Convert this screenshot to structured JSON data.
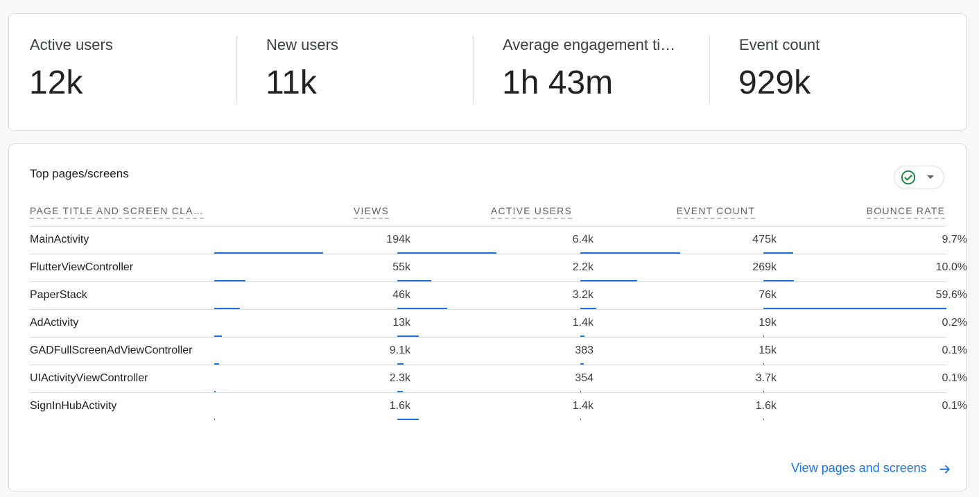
{
  "metrics": [
    {
      "label": "Active users",
      "value": "12k"
    },
    {
      "label": "New users",
      "value": "11k"
    },
    {
      "label": "Average engagement ti…",
      "value": "1h 43m"
    },
    {
      "label": "Event count",
      "value": "929k"
    }
  ],
  "table": {
    "title": "Top pages/screens",
    "status_icon": "check-circle-icon",
    "accent_color": "#1a73e8",
    "status_color": "#188038",
    "columns": {
      "name": "PAGE TITLE AND SCREEN CLA…",
      "views": "VIEWS",
      "active_users": "ACTIVE USERS",
      "event_count": "EVENT COUNT",
      "bounce_rate": "BOUNCE RATE"
    },
    "rows": [
      {
        "name": "MainActivity",
        "views": "194k",
        "active_users": "6.4k",
        "event_count": "475k",
        "bounce_rate": "9.7%",
        "bars": {
          "views": 1.0,
          "active_users": 1.0,
          "event_count": 1.0,
          "bounce_rate": 0.163
        }
      },
      {
        "name": "FlutterViewController",
        "views": "55k",
        "active_users": "2.2k",
        "event_count": "269k",
        "bounce_rate": "10.0%",
        "bars": {
          "views": 0.284,
          "active_users": 0.344,
          "event_count": 0.566,
          "bounce_rate": 0.168
        }
      },
      {
        "name": "PaperStack",
        "views": "46k",
        "active_users": "3.2k",
        "event_count": "76k",
        "bounce_rate": "59.6%",
        "bars": {
          "views": 0.237,
          "active_users": 0.5,
          "event_count": 0.16,
          "bounce_rate": 1.0
        }
      },
      {
        "name": "AdActivity",
        "views": "13k",
        "active_users": "1.4k",
        "event_count": "19k",
        "bounce_rate": "0.2%",
        "bars": {
          "views": 0.067,
          "active_users": 0.219,
          "event_count": 0.04,
          "bounce_rate": 0.003
        }
      },
      {
        "name": "GADFullScreenAdViewController",
        "views": "9.1k",
        "active_users": "383",
        "event_count": "15k",
        "bounce_rate": "0.1%",
        "bars": {
          "views": 0.047,
          "active_users": 0.06,
          "event_count": 0.032,
          "bounce_rate": 0.002
        }
      },
      {
        "name": "UIActivityViewController",
        "views": "2.3k",
        "active_users": "354",
        "event_count": "3.7k",
        "bounce_rate": "0.1%",
        "bars": {
          "views": 0.012,
          "active_users": 0.055,
          "event_count": 0.008,
          "bounce_rate": 0.002
        }
      },
      {
        "name": "SignInHubActivity",
        "views": "1.6k",
        "active_users": "1.4k",
        "event_count": "1.6k",
        "bounce_rate": "0.1%",
        "bars": {
          "views": 0.008,
          "active_users": 0.219,
          "event_count": 0.003,
          "bounce_rate": 0.002
        }
      }
    ]
  },
  "footer": {
    "link_label": "View pages and screens",
    "link_icon": "arrow-right-icon"
  }
}
